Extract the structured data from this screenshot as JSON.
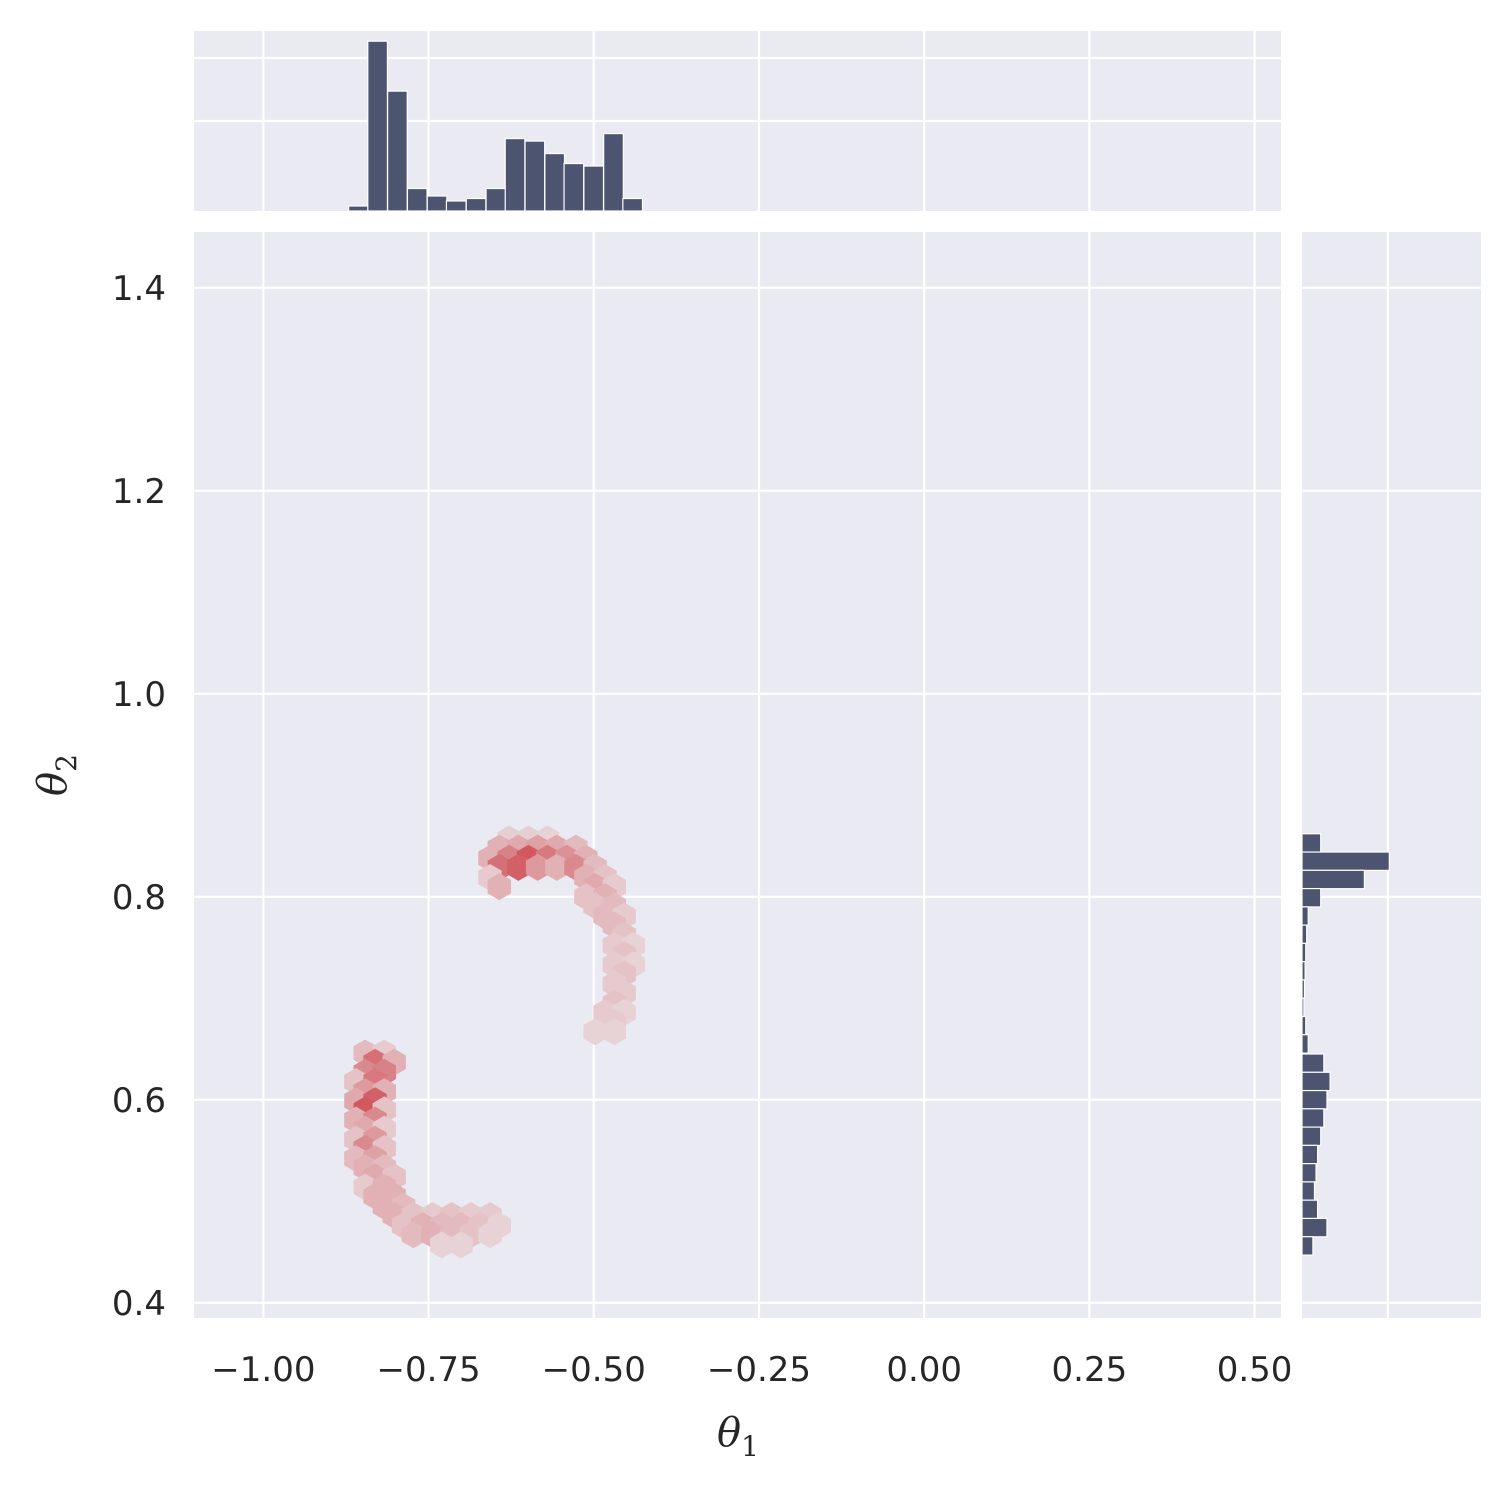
{
  "chart_data": {
    "type": "jointplot",
    "xlabel_main": "θ",
    "xlabel_sub": "1",
    "ylabel_main": "θ",
    "ylabel_sub": "2",
    "xlim": [
      -1.105,
      0.54
    ],
    "ylim": [
      0.385,
      1.455
    ],
    "xticks": [
      -1.0,
      -0.75,
      -0.5,
      -0.25,
      0.0,
      0.25,
      0.5
    ],
    "xtick_labels": [
      "−1.00",
      "−0.75",
      "−0.50",
      "−0.25",
      "0.00",
      "0.25",
      "0.50"
    ],
    "yticks": [
      0.4,
      0.6,
      0.8,
      1.0,
      1.2,
      1.4
    ],
    "ytick_labels": [
      "0.4",
      "0.6",
      "0.8",
      "1.0",
      "1.2",
      "1.4"
    ],
    "grid": true,
    "hexbin_color": "#c44e52",
    "hist_color": "#4c5470",
    "background": "#eaeaf2",
    "hexbin": [
      {
        "x": -0.846,
        "y": 0.646,
        "d": 0.25
      },
      {
        "x": -0.817,
        "y": 0.646,
        "d": 0.15
      },
      {
        "x": -0.831,
        "y": 0.637,
        "d": 0.7
      },
      {
        "x": -0.802,
        "y": 0.637,
        "d": 0.3
      },
      {
        "x": -0.846,
        "y": 0.627,
        "d": 0.55
      },
      {
        "x": -0.817,
        "y": 0.627,
        "d": 0.6
      },
      {
        "x": -0.86,
        "y": 0.618,
        "d": 0.2
      },
      {
        "x": -0.831,
        "y": 0.618,
        "d": 0.65
      },
      {
        "x": -0.846,
        "y": 0.608,
        "d": 0.45
      },
      {
        "x": -0.817,
        "y": 0.608,
        "d": 0.3
      },
      {
        "x": -0.86,
        "y": 0.599,
        "d": 0.35
      },
      {
        "x": -0.831,
        "y": 0.599,
        "d": 0.8
      },
      {
        "x": -0.846,
        "y": 0.59,
        "d": 0.85
      },
      {
        "x": -0.817,
        "y": 0.59,
        "d": 0.2
      },
      {
        "x": -0.86,
        "y": 0.58,
        "d": 0.3
      },
      {
        "x": -0.831,
        "y": 0.58,
        "d": 0.55
      },
      {
        "x": -0.846,
        "y": 0.571,
        "d": 0.35
      },
      {
        "x": -0.817,
        "y": 0.571,
        "d": 0.15
      },
      {
        "x": -0.86,
        "y": 0.561,
        "d": 0.2
      },
      {
        "x": -0.831,
        "y": 0.561,
        "d": 0.45
      },
      {
        "x": -0.846,
        "y": 0.552,
        "d": 0.55
      },
      {
        "x": -0.817,
        "y": 0.552,
        "d": 0.2
      },
      {
        "x": -0.86,
        "y": 0.542,
        "d": 0.25
      },
      {
        "x": -0.831,
        "y": 0.542,
        "d": 0.4
      },
      {
        "x": -0.846,
        "y": 0.533,
        "d": 0.3
      },
      {
        "x": -0.817,
        "y": 0.533,
        "d": 0.25
      },
      {
        "x": -0.831,
        "y": 0.524,
        "d": 0.35
      },
      {
        "x": -0.802,
        "y": 0.524,
        "d": 0.2
      },
      {
        "x": -0.846,
        "y": 0.514,
        "d": 0.15
      },
      {
        "x": -0.817,
        "y": 0.514,
        "d": 0.3
      },
      {
        "x": -0.831,
        "y": 0.505,
        "d": 0.3
      },
      {
        "x": -0.802,
        "y": 0.505,
        "d": 0.3
      },
      {
        "x": -0.817,
        "y": 0.495,
        "d": 0.3
      },
      {
        "x": -0.788,
        "y": 0.495,
        "d": 0.25
      },
      {
        "x": -0.802,
        "y": 0.486,
        "d": 0.3
      },
      {
        "x": -0.773,
        "y": 0.486,
        "d": 0.2
      },
      {
        "x": -0.744,
        "y": 0.486,
        "d": 0.15
      },
      {
        "x": -0.715,
        "y": 0.486,
        "d": 0.2
      },
      {
        "x": -0.686,
        "y": 0.486,
        "d": 0.15
      },
      {
        "x": -0.657,
        "y": 0.486,
        "d": 0.15
      },
      {
        "x": -0.788,
        "y": 0.476,
        "d": 0.2
      },
      {
        "x": -0.759,
        "y": 0.476,
        "d": 0.3
      },
      {
        "x": -0.73,
        "y": 0.476,
        "d": 0.25
      },
      {
        "x": -0.701,
        "y": 0.476,
        "d": 0.25
      },
      {
        "x": -0.672,
        "y": 0.476,
        "d": 0.2
      },
      {
        "x": -0.643,
        "y": 0.476,
        "d": 0.1
      },
      {
        "x": -0.773,
        "y": 0.467,
        "d": 0.25
      },
      {
        "x": -0.744,
        "y": 0.467,
        "d": 0.3
      },
      {
        "x": -0.715,
        "y": 0.467,
        "d": 0.25
      },
      {
        "x": -0.686,
        "y": 0.467,
        "d": 0.2
      },
      {
        "x": -0.657,
        "y": 0.467,
        "d": 0.1
      },
      {
        "x": -0.73,
        "y": 0.457,
        "d": 0.1
      },
      {
        "x": -0.701,
        "y": 0.457,
        "d": 0.1
      },
      {
        "x": -0.628,
        "y": 0.857,
        "d": 0.12
      },
      {
        "x": -0.599,
        "y": 0.857,
        "d": 0.12
      },
      {
        "x": -0.57,
        "y": 0.857,
        "d": 0.1
      },
      {
        "x": -0.643,
        "y": 0.848,
        "d": 0.3
      },
      {
        "x": -0.614,
        "y": 0.848,
        "d": 0.35
      },
      {
        "x": -0.585,
        "y": 0.848,
        "d": 0.4
      },
      {
        "x": -0.556,
        "y": 0.848,
        "d": 0.35
      },
      {
        "x": -0.527,
        "y": 0.848,
        "d": 0.25
      },
      {
        "x": -0.657,
        "y": 0.838,
        "d": 0.3
      },
      {
        "x": -0.628,
        "y": 0.838,
        "d": 0.6
      },
      {
        "x": -0.599,
        "y": 0.838,
        "d": 0.85
      },
      {
        "x": -0.57,
        "y": 0.838,
        "d": 0.65
      },
      {
        "x": -0.541,
        "y": 0.838,
        "d": 0.5
      },
      {
        "x": -0.512,
        "y": 0.838,
        "d": 0.3
      },
      {
        "x": -0.643,
        "y": 0.829,
        "d": 0.7
      },
      {
        "x": -0.614,
        "y": 0.829,
        "d": 0.8
      },
      {
        "x": -0.585,
        "y": 0.829,
        "d": 0.45
      },
      {
        "x": -0.556,
        "y": 0.829,
        "d": 0.3
      },
      {
        "x": -0.527,
        "y": 0.829,
        "d": 0.55
      },
      {
        "x": -0.498,
        "y": 0.829,
        "d": 0.25
      },
      {
        "x": -0.657,
        "y": 0.819,
        "d": 0.15
      },
      {
        "x": -0.512,
        "y": 0.819,
        "d": 0.3
      },
      {
        "x": -0.483,
        "y": 0.819,
        "d": 0.2
      },
      {
        "x": -0.643,
        "y": 0.81,
        "d": 0.3
      },
      {
        "x": -0.498,
        "y": 0.81,
        "d": 0.35
      },
      {
        "x": -0.469,
        "y": 0.81,
        "d": 0.15
      },
      {
        "x": -0.512,
        "y": 0.8,
        "d": 0.2
      },
      {
        "x": -0.483,
        "y": 0.8,
        "d": 0.3
      },
      {
        "x": -0.498,
        "y": 0.791,
        "d": 0.2
      },
      {
        "x": -0.469,
        "y": 0.791,
        "d": 0.25
      },
      {
        "x": -0.483,
        "y": 0.781,
        "d": 0.25
      },
      {
        "x": -0.454,
        "y": 0.781,
        "d": 0.15
      },
      {
        "x": -0.469,
        "y": 0.772,
        "d": 0.25
      },
      {
        "x": -0.454,
        "y": 0.762,
        "d": 0.2
      },
      {
        "x": -0.469,
        "y": 0.752,
        "d": 0.15
      },
      {
        "x": -0.44,
        "y": 0.752,
        "d": 0.1
      },
      {
        "x": -0.454,
        "y": 0.743,
        "d": 0.2
      },
      {
        "x": -0.469,
        "y": 0.733,
        "d": 0.15
      },
      {
        "x": -0.44,
        "y": 0.733,
        "d": 0.1
      },
      {
        "x": -0.454,
        "y": 0.724,
        "d": 0.2
      },
      {
        "x": -0.469,
        "y": 0.714,
        "d": 0.15
      },
      {
        "x": -0.454,
        "y": 0.705,
        "d": 0.15
      },
      {
        "x": -0.469,
        "y": 0.695,
        "d": 0.2
      },
      {
        "x": -0.483,
        "y": 0.686,
        "d": 0.15
      },
      {
        "x": -0.454,
        "y": 0.686,
        "d": 0.1
      },
      {
        "x": -0.469,
        "y": 0.676,
        "d": 0.15
      },
      {
        "x": -0.498,
        "y": 0.667,
        "d": 0.1
      },
      {
        "x": -0.469,
        "y": 0.667,
        "d": 0.1
      }
    ],
    "marginal_x": {
      "bin_width": 0.0297,
      "bins": [
        {
          "x0": -0.871,
          "count": 2
        },
        {
          "x0": -0.842,
          "count": 68
        },
        {
          "x0": -0.812,
          "count": 48
        },
        {
          "x0": -0.782,
          "count": 9
        },
        {
          "x0": -0.752,
          "count": 6
        },
        {
          "x0": -0.723,
          "count": 4
        },
        {
          "x0": -0.693,
          "count": 5
        },
        {
          "x0": -0.663,
          "count": 9
        },
        {
          "x0": -0.634,
          "count": 29
        },
        {
          "x0": -0.604,
          "count": 28
        },
        {
          "x0": -0.574,
          "count": 23
        },
        {
          "x0": -0.545,
          "count": 19
        },
        {
          "x0": -0.515,
          "count": 18
        },
        {
          "x0": -0.485,
          "count": 31
        },
        {
          "x0": -0.456,
          "count": 5
        }
      ]
    },
    "marginal_y": {
      "bin_width": 0.0181,
      "bins": [
        {
          "y0": 0.844,
          "count": 6
        },
        {
          "y0": 0.826,
          "count": 28
        },
        {
          "y0": 0.808,
          "count": 20
        },
        {
          "y0": 0.79,
          "count": 6
        },
        {
          "y0": 0.772,
          "count": 2
        },
        {
          "y0": 0.754,
          "count": 1.5
        },
        {
          "y0": 0.736,
          "count": 1.2
        },
        {
          "y0": 0.718,
          "count": 1
        },
        {
          "y0": 0.7,
          "count": 0.8
        },
        {
          "y0": 0.682,
          "count": 0.6
        },
        {
          "y0": 0.664,
          "count": 1.2
        },
        {
          "y0": 0.646,
          "count": 2
        },
        {
          "y0": 0.627,
          "count": 7
        },
        {
          "y0": 0.609,
          "count": 9
        },
        {
          "y0": 0.591,
          "count": 8
        },
        {
          "y0": 0.573,
          "count": 7
        },
        {
          "y0": 0.555,
          "count": 6
        },
        {
          "y0": 0.537,
          "count": 5
        },
        {
          "y0": 0.519,
          "count": 4.5
        },
        {
          "y0": 0.501,
          "count": 4
        },
        {
          "y0": 0.483,
          "count": 5
        },
        {
          "y0": 0.465,
          "count": 8
        },
        {
          "y0": 0.447,
          "count": 3.5
        }
      ]
    }
  }
}
